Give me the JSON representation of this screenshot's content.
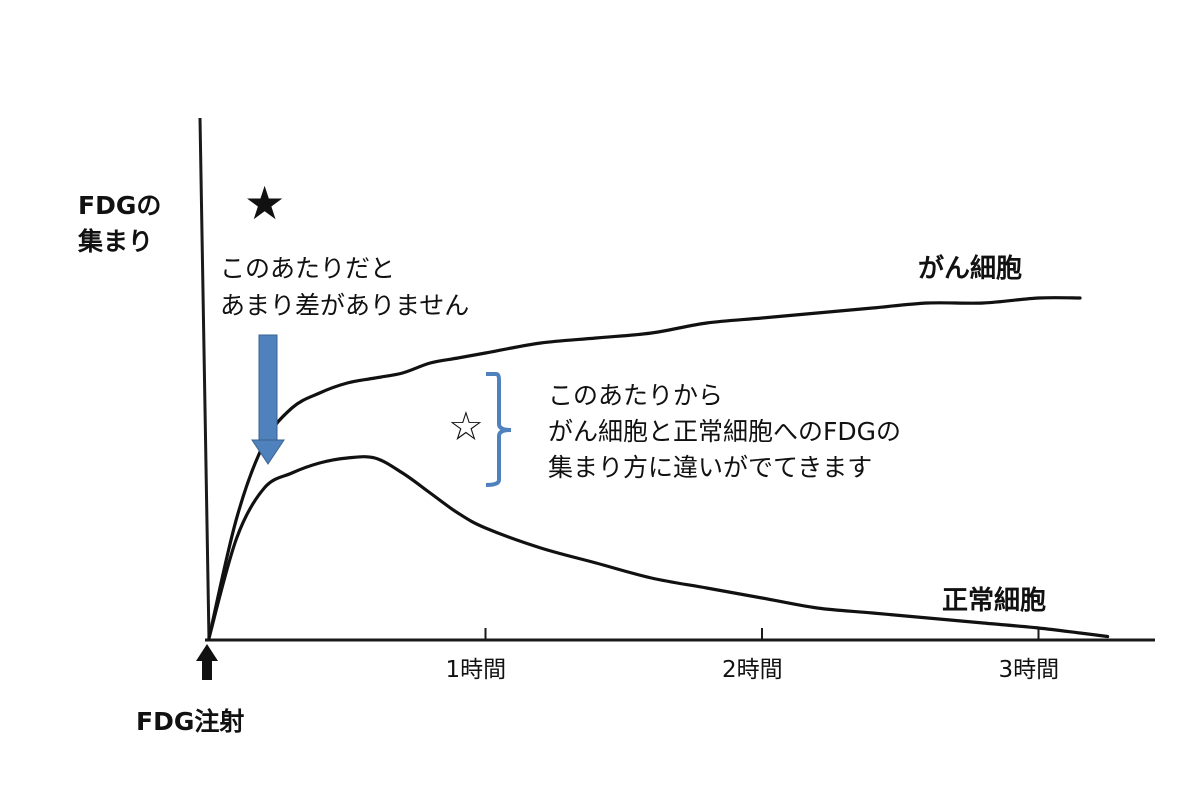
{
  "chart_data": {
    "type": "line",
    "title": "",
    "ylabel_lines": [
      "FDGの",
      "集まり"
    ],
    "xticks": [
      {
        "value": 1,
        "label": "1時間"
      },
      {
        "value": 2,
        "label": "2時間"
      },
      {
        "value": 3,
        "label": "3時間"
      }
    ],
    "xlim": [
      0,
      3.25
    ],
    "ylim": [
      0,
      1
    ],
    "grid": false,
    "series": [
      {
        "name": "がん細胞",
        "x": [
          0,
          0.1,
          0.2,
          0.3,
          0.4,
          0.5,
          0.6,
          0.7,
          0.8,
          0.9,
          1.0,
          1.2,
          1.4,
          1.6,
          1.8,
          2.0,
          2.2,
          2.4,
          2.6,
          2.8,
          3.0,
          3.15
        ],
        "y": [
          0,
          0.24,
          0.39,
          0.46,
          0.49,
          0.51,
          0.52,
          0.53,
          0.55,
          0.56,
          0.57,
          0.59,
          0.6,
          0.61,
          0.63,
          0.64,
          0.65,
          0.66,
          0.67,
          0.67,
          0.68,
          0.68
        ]
      },
      {
        "name": "正常細胞",
        "x": [
          0,
          0.1,
          0.2,
          0.3,
          0.4,
          0.5,
          0.6,
          0.7,
          0.8,
          0.9,
          1.0,
          1.2,
          1.4,
          1.6,
          1.8,
          2.0,
          2.2,
          2.4,
          2.6,
          2.8,
          3.0,
          3.15,
          3.25
        ],
        "y": [
          0,
          0.2,
          0.3,
          0.33,
          0.35,
          0.36,
          0.36,
          0.33,
          0.29,
          0.25,
          0.22,
          0.18,
          0.15,
          0.12,
          0.1,
          0.08,
          0.06,
          0.05,
          0.04,
          0.03,
          0.02,
          0.01,
          0.003
        ]
      }
    ],
    "annotations": [
      {
        "id": "early",
        "text_lines": [
          "このあたりだと",
          "あまり差がありません"
        ],
        "marker": "★"
      },
      {
        "id": "later",
        "text_lines": [
          "このあたりから",
          "がん細胞と正常細胞へのFDGの",
          "集まり方に違いがでてきます"
        ],
        "marker": "☆"
      }
    ],
    "injection_label": "FDG注射",
    "colors": {
      "axes": "#1a1a1a",
      "curves": "#111111",
      "arrow": "#4f81bd",
      "bracket": "#4f81bd"
    }
  }
}
